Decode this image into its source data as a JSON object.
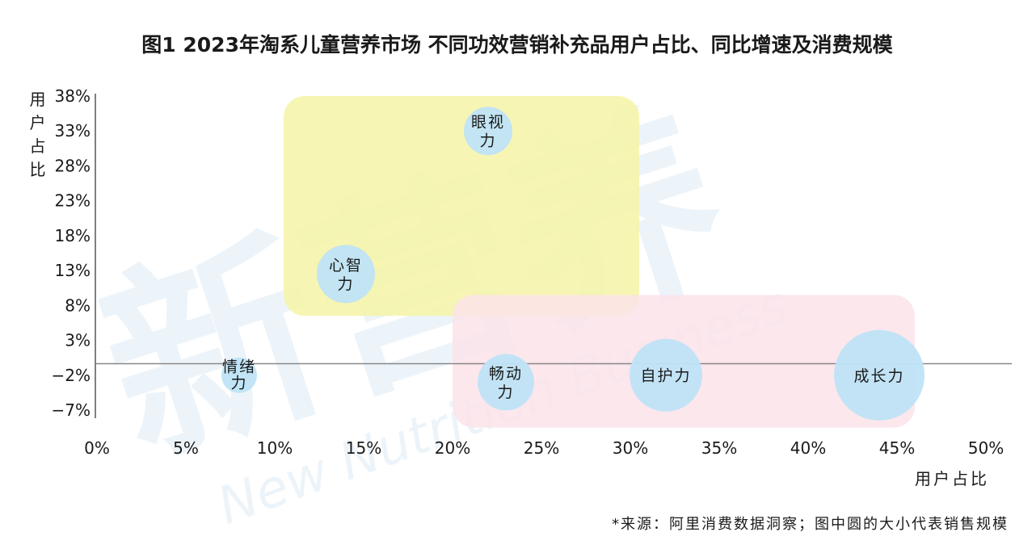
{
  "chart_data": {
    "type": "scatter",
    "title": "图1 2023年淘系儿童营养市场 不同功效营销补充品用户占比、同比增速及消费规模",
    "xlabel": "用户占比",
    "ylabel": "用户占比",
    "xlim": [
      0,
      50
    ],
    "ylim": [
      -7,
      38
    ],
    "x_ticks": [
      "0%",
      "5%",
      "10%",
      "15%",
      "20%",
      "25%",
      "30%",
      "35%",
      "40%",
      "45%",
      "50%"
    ],
    "y_ticks": [
      "38%",
      "33%",
      "28%",
      "23%",
      "18%",
      "13%",
      "8%",
      "3%",
      "−2%",
      "−7%"
    ],
    "grid": false,
    "points": [
      {
        "label_lines": [
          "眼视",
          "力"
        ],
        "x": 22,
        "y": 33,
        "size": 30
      },
      {
        "label_lines": [
          "心智",
          "力"
        ],
        "x": 14,
        "y": 12.5,
        "size": 36
      },
      {
        "label_lines": [
          "情绪",
          "力"
        ],
        "x": 8,
        "y": -2,
        "size": 22
      },
      {
        "label_lines": [
          "畅动",
          "力"
        ],
        "x": 23,
        "y": -3,
        "size": 35
      },
      {
        "label_lines": [
          "自护力"
        ],
        "x": 32,
        "y": -2,
        "size": 45
      },
      {
        "label_lines": [
          "成长力"
        ],
        "x": 44,
        "y": -2,
        "size": 56
      }
    ],
    "highlight_regions": [
      {
        "x_range": [
          10.5,
          30.5
        ],
        "y_range": [
          6.5,
          38
        ],
        "color": "#f6f3a6"
      },
      {
        "x_range": [
          20,
          46
        ],
        "y_range": [
          -9.5,
          9.5
        ],
        "color": "#fbe3ea"
      }
    ],
    "bubble_color": "#bfe3f7",
    "watermark": "新营养 New Nutrition Business",
    "note": "*来源：阿里消费数据洞察；图中圆的大小代表销售规模"
  }
}
